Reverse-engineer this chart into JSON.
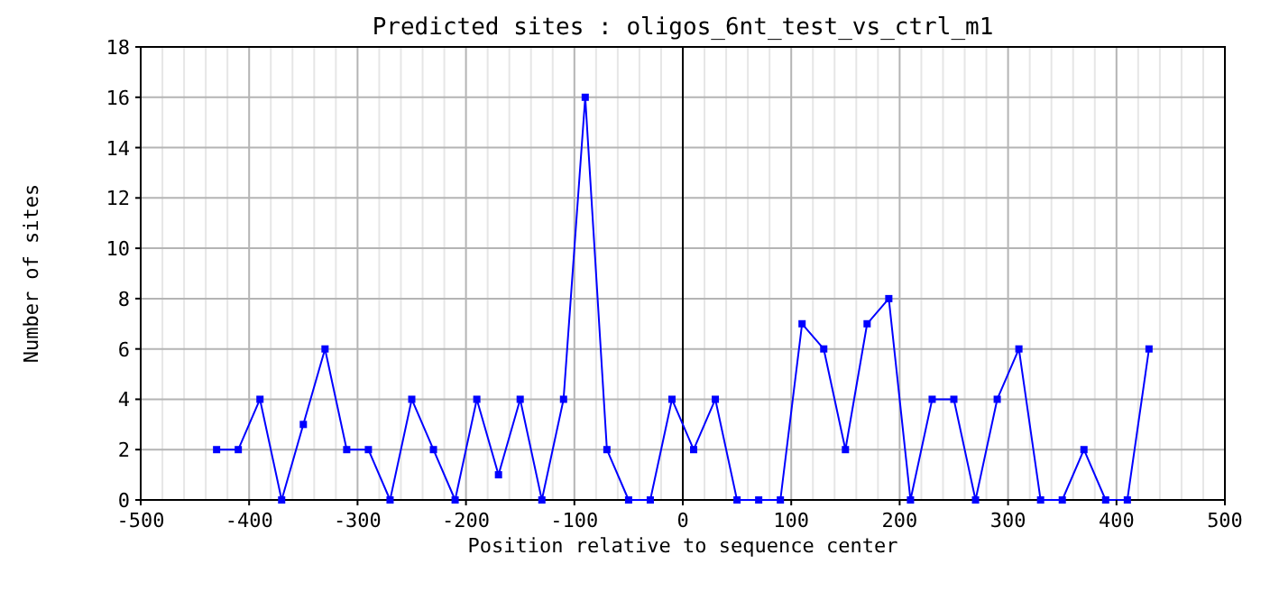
{
  "chart_data": {
    "type": "line",
    "title": "Predicted sites : oligos_6nt_test_vs_ctrl_m1",
    "xlabel": "Position relative to sequence center",
    "ylabel": "Number of sites",
    "x": [
      -430,
      -410,
      -390,
      -370,
      -350,
      -330,
      -310,
      -290,
      -270,
      -250,
      -230,
      -210,
      -190,
      -170,
      -150,
      -130,
      -110,
      -90,
      -70,
      -50,
      -30,
      -10,
      10,
      30,
      50,
      70,
      90,
      110,
      130,
      150,
      170,
      190,
      210,
      230,
      250,
      270,
      290,
      310,
      330,
      350,
      370,
      390,
      410,
      430
    ],
    "series": [
      {
        "color": "#0000ff",
        "values": [
          2,
          2,
          4,
          0,
          3,
          6,
          2,
          2,
          0,
          4,
          2,
          0,
          4,
          1,
          4,
          0,
          4,
          16,
          2,
          0,
          0,
          4,
          2,
          4,
          0,
          0,
          0,
          7,
          6,
          2,
          7,
          8,
          0,
          4,
          4,
          0,
          4,
          6,
          0,
          0,
          2,
          0,
          0,
          6
        ]
      }
    ],
    "xlim": [
      -500,
      500
    ],
    "xticks": [
      -500,
      -400,
      -300,
      -200,
      -100,
      0,
      100,
      200,
      300,
      400,
      500
    ],
    "ylim": [
      0,
      18
    ],
    "yticks": [
      0,
      2,
      4,
      6,
      8,
      10,
      12,
      14,
      16,
      18
    ],
    "grid": true,
    "marker": "square",
    "line_style": "solid",
    "ref_lines": [
      {
        "axis": "x",
        "value": 0,
        "color": "#000000"
      }
    ]
  }
}
